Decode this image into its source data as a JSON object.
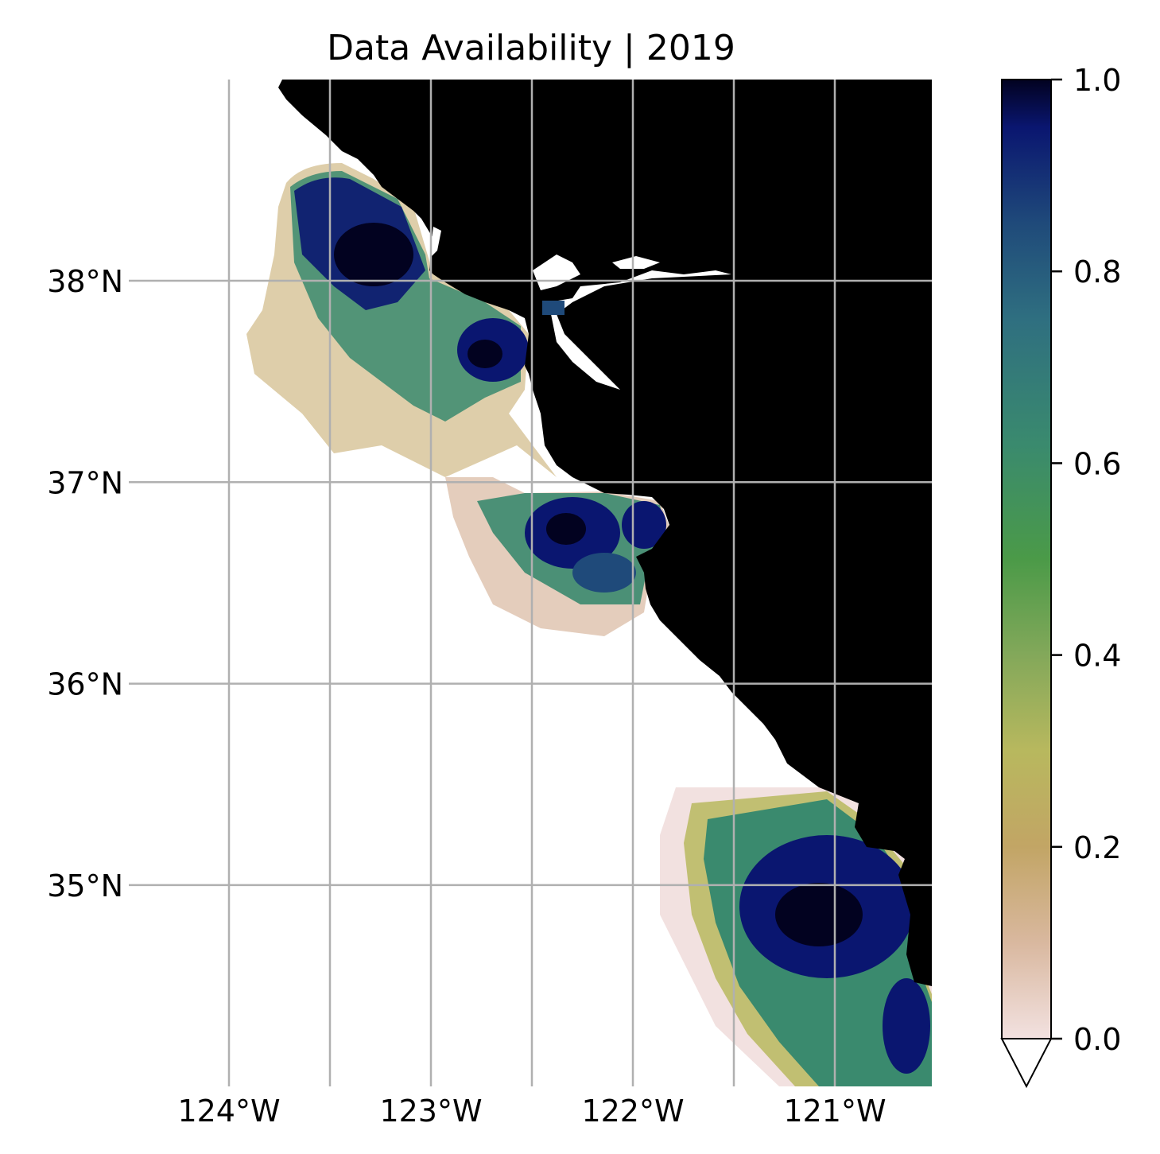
{
  "title": "Data Availability | 2019",
  "map": {
    "extent": {
      "lon": [
        -124.5,
        -120.5
      ],
      "lat": [
        34.0,
        39.0
      ]
    },
    "lat_ticks": [
      {
        "value": 38,
        "label": "38°N"
      },
      {
        "value": 37,
        "label": "37°N"
      },
      {
        "value": 36,
        "label": "36°N"
      },
      {
        "value": 35,
        "label": "35°N"
      }
    ],
    "lon_ticks": [
      {
        "value": -124,
        "label": "124°W"
      },
      {
        "value": -123,
        "label": "123°W"
      },
      {
        "value": -122,
        "label": "122°W"
      },
      {
        "value": -121,
        "label": "121°W"
      }
    ],
    "minor_gridlines_lon": [
      -123.5,
      -122.5,
      -121.5
    ],
    "gridline_color": "#b0b0b0",
    "land_color": "#000000"
  },
  "colorbar": {
    "min": 0.0,
    "max": 1.0,
    "extend": "min",
    "ticks": [
      {
        "value": 1.0,
        "label": "1.0"
      },
      {
        "value": 0.8,
        "label": "0.8"
      },
      {
        "value": 0.6,
        "label": "0.6"
      },
      {
        "value": 0.4,
        "label": "0.4"
      },
      {
        "value": 0.2,
        "label": "0.2"
      },
      {
        "value": 0.0,
        "label": "0.0"
      }
    ],
    "colormap_stops": [
      {
        "v": 0.0,
        "color": "#f2e1e0"
      },
      {
        "v": 0.1,
        "color": "#d9b89f"
      },
      {
        "v": 0.2,
        "color": "#c2a565"
      },
      {
        "v": 0.3,
        "color": "#b8b85e"
      },
      {
        "v": 0.4,
        "color": "#83a85a"
      },
      {
        "v": 0.5,
        "color": "#4b9a48"
      },
      {
        "v": 0.62,
        "color": "#3a8a6e"
      },
      {
        "v": 0.75,
        "color": "#2f6f80"
      },
      {
        "v": 0.85,
        "color": "#1f4a7a"
      },
      {
        "v": 0.95,
        "color": "#0a1670"
      },
      {
        "v": 1.0,
        "color": "#020220"
      }
    ]
  }
}
